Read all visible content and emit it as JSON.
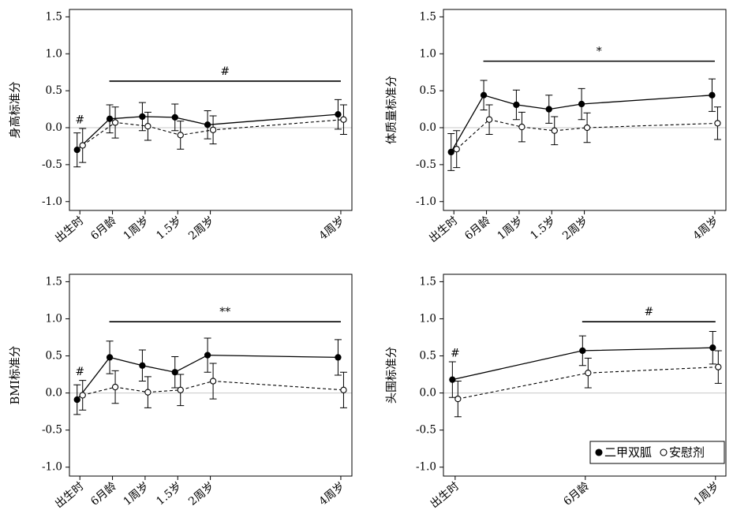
{
  "chart_data": [
    {
      "type": "line",
      "ylabel": "身高标准分",
      "categories": [
        "出生时",
        "6月龄",
        "1周岁",
        "1.5岁",
        "2周岁",
        "4周岁"
      ],
      "x": [
        0,
        0.5,
        1,
        1.5,
        2,
        4
      ],
      "xlim": [
        -0.16,
        4.17
      ],
      "ylim": [
        -1.12,
        1.6
      ],
      "yticks": [
        -1.0,
        -0.5,
        0.0,
        0.5,
        1.0,
        1.5
      ],
      "ytick_labels": [
        "-1.0",
        "-0.5",
        "0.0",
        "0.5",
        "1.0",
        "1.5"
      ],
      "grid": false,
      "reference_line": {
        "y": 0,
        "color": "#c8c8c8"
      },
      "series": [
        {
          "marker_fill": "#000000",
          "dashed": false,
          "values": [
            -0.3,
            0.12,
            0.15,
            0.14,
            0.04,
            0.18
          ],
          "errors": [
            0.23,
            0.19,
            0.19,
            0.18,
            0.19,
            0.2
          ]
        },
        {
          "marker_fill": "#ffffff",
          "dashed": true,
          "values": [
            -0.24,
            0.07,
            0.02,
            -0.1,
            -0.03,
            0.11
          ],
          "errors": [
            0.23,
            0.21,
            0.19,
            0.19,
            0.19,
            0.2
          ]
        }
      ],
      "point_marks": [
        {
          "x": 0,
          "text": "#"
        }
      ],
      "bracket": {
        "from": 0.5,
        "to": 4,
        "text": "#"
      }
    },
    {
      "type": "line",
      "ylabel": "体质量标准分",
      "categories": [
        "出生时",
        "6月龄",
        "1周岁",
        "1.5岁",
        "2周岁",
        "4周岁"
      ],
      "x": [
        0,
        0.5,
        1,
        1.5,
        2,
        4
      ],
      "xlim": [
        -0.16,
        4.17
      ],
      "ylim": [
        -1.12,
        1.6
      ],
      "yticks": [
        -1.0,
        -0.5,
        0.0,
        0.5,
        1.0,
        1.5
      ],
      "ytick_labels": [
        "-1.0",
        "-0.5",
        "0.0",
        "0.5",
        "1.0",
        "1.5"
      ],
      "grid": false,
      "reference_line": {
        "y": 0,
        "color": "#c8c8c8"
      },
      "series": [
        {
          "marker_fill": "#000000",
          "dashed": false,
          "values": [
            -0.33,
            0.44,
            0.31,
            0.25,
            0.32,
            0.44
          ],
          "errors": [
            0.25,
            0.2,
            0.2,
            0.19,
            0.21,
            0.22
          ]
        },
        {
          "marker_fill": "#ffffff",
          "dashed": true,
          "values": [
            -0.29,
            0.11,
            0.01,
            -0.04,
            0.0,
            0.06
          ],
          "errors": [
            0.25,
            0.2,
            0.2,
            0.19,
            0.2,
            0.22
          ]
        }
      ],
      "bracket": {
        "from": 0.5,
        "to": 4,
        "text": "*"
      }
    },
    {
      "type": "line",
      "ylabel": "BMI标准分",
      "categories": [
        "出生时",
        "6月龄",
        "1周岁",
        "1.5岁",
        "2周岁",
        "4周岁"
      ],
      "x": [
        0,
        0.5,
        1,
        1.5,
        2,
        4
      ],
      "xlim": [
        -0.16,
        4.17
      ],
      "ylim": [
        -1.12,
        1.6
      ],
      "yticks": [
        -1.0,
        -0.5,
        0.0,
        0.5,
        1.0,
        1.5
      ],
      "ytick_labels": [
        "-1.0",
        "-0.5",
        "0.0",
        "0.5",
        "1.0",
        "1.5"
      ],
      "grid": false,
      "reference_line": {
        "y": 0,
        "color": "#c8c8c8"
      },
      "series": [
        {
          "marker_fill": "#000000",
          "dashed": false,
          "values": [
            -0.09,
            0.48,
            0.37,
            0.28,
            0.51,
            0.48
          ],
          "errors": [
            0.2,
            0.22,
            0.21,
            0.21,
            0.23,
            0.24
          ]
        },
        {
          "marker_fill": "#ffffff",
          "dashed": true,
          "values": [
            -0.03,
            0.08,
            0.01,
            0.04,
            0.16,
            0.04
          ],
          "errors": [
            0.2,
            0.22,
            0.21,
            0.21,
            0.24,
            0.24
          ]
        }
      ],
      "point_marks": [
        {
          "x": 0,
          "text": "#"
        }
      ],
      "bracket": {
        "from": 0.5,
        "to": 4,
        "text": "**"
      }
    },
    {
      "type": "line",
      "ylabel": "头围标准分",
      "categories": [
        "出生时",
        "6月龄",
        "1周岁"
      ],
      "x": [
        0,
        0.5,
        1
      ],
      "xlim": [
        -0.045,
        1.04
      ],
      "ylim": [
        -1.12,
        1.6
      ],
      "yticks": [
        -1.0,
        -0.5,
        0.0,
        0.5,
        1.0,
        1.5
      ],
      "ytick_labels": [
        "-1.0",
        "-0.5",
        "0.0",
        "0.5",
        "1.0",
        "1.5"
      ],
      "grid": false,
      "reference_line": {
        "y": 0,
        "color": "#c8c8c8"
      },
      "series": [
        {
          "name": "二甲双胍",
          "marker_fill": "#000000",
          "dashed": false,
          "values": [
            0.18,
            0.57,
            0.61
          ],
          "errors": [
            0.24,
            0.2,
            0.22
          ]
        },
        {
          "name": "安慰剂",
          "marker_fill": "#ffffff",
          "dashed": true,
          "values": [
            -0.08,
            0.27,
            0.35
          ],
          "errors": [
            0.24,
            0.2,
            0.22
          ]
        }
      ],
      "point_marks": [
        {
          "x": 0,
          "text": "#"
        }
      ],
      "bracket": {
        "from": 0.5,
        "to": 1,
        "text": "#"
      },
      "legend": {
        "position": "bottom-right"
      }
    }
  ]
}
